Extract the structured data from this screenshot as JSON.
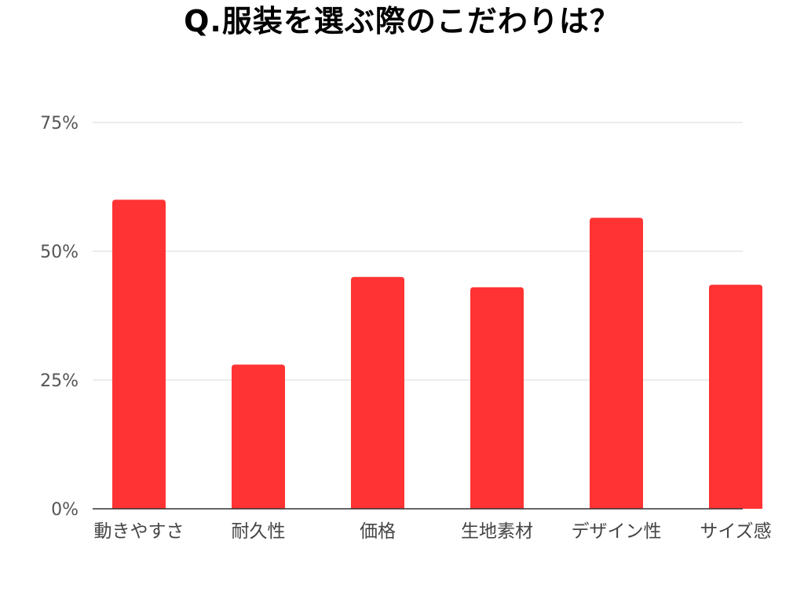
{
  "chart_data": {
    "type": "bar",
    "title": "Q.服装を選ぶ際のこだわりは？",
    "categories": [
      "動きやすさ",
      "耐久性",
      "価格",
      "生地素材",
      "デザイン性",
      "サイズ感"
    ],
    "values": [
      60,
      28,
      45,
      43,
      56.5,
      43.5
    ],
    "ylim": [
      0,
      75
    ],
    "yticks": [
      0,
      25,
      50,
      75
    ],
    "ytick_labels": [
      "0%",
      "25%",
      "50%",
      "75%"
    ],
    "grid": true,
    "legend": "none",
    "bar_color": "#ff3333",
    "grid_color": "#d9d9d9",
    "axis_color": "#333333"
  }
}
